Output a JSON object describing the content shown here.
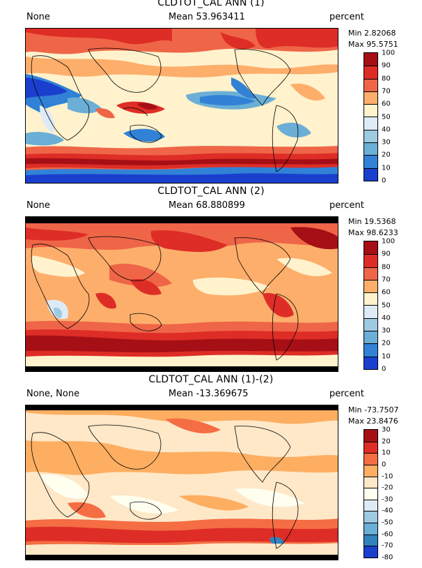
{
  "panels": [
    {
      "title": "CLDTOT_CAL ANN (1)",
      "left_label": "None",
      "mean_label": "Mean 53.963411",
      "units": "percent",
      "min_label": "Min 2.82068",
      "max_label": "Max 95.5751",
      "colorbar": {
        "ticks": [
          "100",
          "90",
          "80",
          "70",
          "60",
          "50",
          "40",
          "30",
          "20",
          "10",
          "0"
        ],
        "colors": [
          "#a50f15",
          "#de2d26",
          "#ef6548",
          "#fdae6b",
          "#fff2cc",
          "#deebf7",
          "#9ecae1",
          "#6baed6",
          "#3182d6",
          "#1a3fcf"
        ]
      }
    },
    {
      "title": "CLDTOT_CAL ANN (2)",
      "left_label": "None",
      "mean_label": "Mean 68.880899",
      "units": "percent",
      "min_label": "Min 19.5368",
      "max_label": "Max 98.6233",
      "colorbar": {
        "ticks": [
          "100",
          "90",
          "80",
          "70",
          "60",
          "50",
          "40",
          "30",
          "20",
          "10",
          "0"
        ],
        "colors": [
          "#a50f15",
          "#de2d26",
          "#ef6548",
          "#fdae6b",
          "#fff2cc",
          "#deebf7",
          "#9ecae1",
          "#6baed6",
          "#3182d6",
          "#1a3fcf"
        ]
      }
    },
    {
      "title": "CLDTOT_CAL ANN (1)-(2)",
      "left_label": "None, None",
      "mean_label": "Mean -13.369675",
      "units": "percent",
      "min_label": "Min -73.7507",
      "max_label": "Max 23.8476",
      "colorbar": {
        "ticks": [
          "30",
          "20",
          "10",
          "0",
          "-10",
          "-20",
          "-30",
          "-40",
          "-50",
          "-60",
          "-70",
          "-80"
        ],
        "colors": [
          "#a50f15",
          "#de2d26",
          "#f46d43",
          "#fdae61",
          "#fee8c8",
          "#fffff0",
          "#deebf7",
          "#9ecae1",
          "#6baed6",
          "#3182bd",
          "#1a3fcf"
        ]
      }
    }
  ]
}
